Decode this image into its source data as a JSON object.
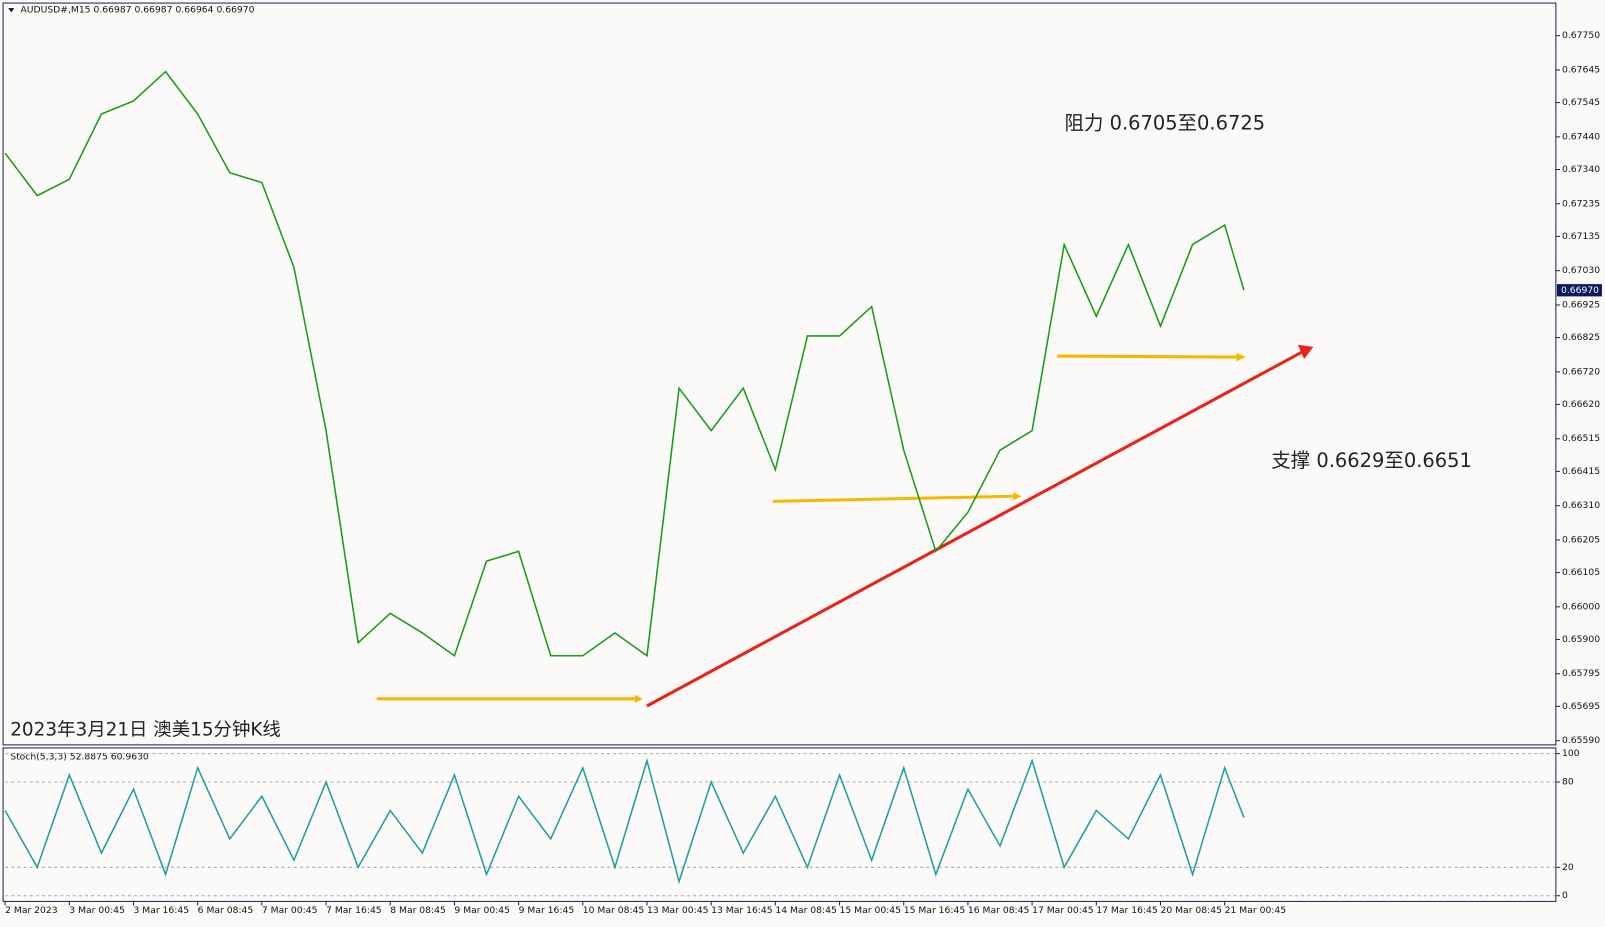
{
  "chart_data": [
    {
      "type": "line",
      "title": "AUDUSD#,M15  0.66987 0.66987 0.66964 0.66970",
      "annotations": [
        "阻力 0.6705至0.6725",
        "支撑 0.6629至0.6651",
        "2023年3月21日 澳美15分钟K线"
      ],
      "x": [
        0,
        0.5,
        1,
        1.5,
        2,
        2.5,
        3,
        3.5,
        4,
        4.5,
        5,
        5.5,
        6,
        6.5,
        7,
        7.5,
        8,
        8.5,
        9,
        9.5,
        10,
        10.5,
        11,
        11.5,
        12,
        12.5,
        13,
        13.5,
        14,
        14.5,
        15,
        15.5,
        16,
        16.5,
        17,
        17.5,
        18,
        18.5,
        19,
        19.3
      ],
      "values": [
        0.6739,
        0.6726,
        0.6731,
        0.6751,
        0.6755,
        0.6764,
        0.6751,
        0.6733,
        0.673,
        0.6704,
        0.6654,
        0.6589,
        0.6598,
        0.6592,
        0.6585,
        0.6614,
        0.6617,
        0.6585,
        0.6585,
        0.6592,
        0.6585,
        0.6667,
        0.6654,
        0.6667,
        0.6642,
        0.6683,
        0.6683,
        0.6692,
        0.6648,
        0.6617,
        0.6629,
        0.6648,
        0.6654,
        0.6711,
        0.6689,
        0.6711,
        0.6686,
        0.6711,
        0.6717,
        0.6697
      ],
      "color": "#169c16",
      "xlim": [
        0,
        24.16
      ],
      "ylim": [
        0.65577,
        0.6785
      ],
      "yticks": [
        {
          "value": 0.6775,
          "label": "0.67750"
        },
        {
          "value": 0.67645,
          "label": "0.67645"
        },
        {
          "value": 0.67545,
          "label": "0.67545"
        },
        {
          "value": 0.6744,
          "label": "0.67440"
        },
        {
          "value": 0.6734,
          "label": "0.67340"
        },
        {
          "value": 0.67235,
          "label": "0.67235"
        },
        {
          "value": 0.67135,
          "label": "0.67135"
        },
        {
          "value": 0.6703,
          "label": "0.67030"
        },
        {
          "value": 0.66925,
          "label": "0.66925"
        },
        {
          "value": 0.66825,
          "label": "0.66825"
        },
        {
          "value": 0.6672,
          "label": "0.66720"
        },
        {
          "value": 0.6662,
          "label": "0.66620"
        },
        {
          "value": 0.66515,
          "label": "0.66515"
        },
        {
          "value": 0.66415,
          "label": "0.66415"
        },
        {
          "value": 0.6631,
          "label": "0.66310"
        },
        {
          "value": 0.66205,
          "label": "0.66205"
        },
        {
          "value": 0.66105,
          "label": "0.66105"
        },
        {
          "value": 0.66,
          "label": "0.66000"
        },
        {
          "value": 0.659,
          "label": "0.65900"
        },
        {
          "value": 0.65795,
          "label": "0.65795"
        },
        {
          "value": 0.65695,
          "label": "0.65695"
        },
        {
          "value": 0.6559,
          "label": "0.65590"
        }
      ],
      "last_price": {
        "value": 0.6697,
        "label": "0.66970"
      }
    },
    {
      "type": "line",
      "title": "Stoch(5,3,3) 52.8875 60.9630",
      "x": [
        0,
        0.5,
        1,
        1.5,
        2,
        2.5,
        3,
        3.5,
        4,
        4.5,
        5,
        5.5,
        6,
        6.5,
        7,
        7.5,
        8,
        8.5,
        9,
        9.5,
        10,
        10.5,
        11,
        11.5,
        12,
        12.5,
        13,
        13.5,
        14,
        14.5,
        15,
        15.5,
        16,
        16.5,
        17,
        17.5,
        18,
        18.5,
        19,
        19.3
      ],
      "values": [
        60,
        20,
        85,
        30,
        75,
        15,
        90,
        40,
        70,
        25,
        80,
        20,
        60,
        30,
        85,
        15,
        70,
        40,
        90,
        20,
        95,
        10,
        80,
        30,
        70,
        20,
        85,
        25,
        90,
        15,
        75,
        35,
        95,
        20,
        60,
        40,
        85,
        15,
        90,
        55
      ],
      "color": "#1e9e9e",
      "xlim": [
        0,
        24.16
      ],
      "ylim": [
        -4,
        104
      ],
      "yticks": [
        0,
        20,
        80,
        100
      ],
      "xticks": [
        {
          "value": 0,
          "label": "2 Mar 2023"
        },
        {
          "value": 1,
          "label": "3 Mar 00:45"
        },
        {
          "value": 2,
          "label": "3 Mar 16:45"
        },
        {
          "value": 3,
          "label": "6 Mar 08:45"
        },
        {
          "value": 4,
          "label": "7 Mar 00:45"
        },
        {
          "value": 5,
          "label": "7 Mar 16:45"
        },
        {
          "value": 6,
          "label": "8 Mar 08:45"
        },
        {
          "value": 7,
          "label": "9 Mar 00:45"
        },
        {
          "value": 8,
          "label": "9 Mar 16:45"
        },
        {
          "value": 9,
          "label": "10 Mar 08:45"
        },
        {
          "value": 10,
          "label": "13 Mar 00:45"
        },
        {
          "value": 11,
          "label": "13 Mar 16:45"
        },
        {
          "value": 12,
          "label": "14 Mar 08:45"
        },
        {
          "value": 13,
          "label": "15 Mar 00:45"
        },
        {
          "value": 14,
          "label": "15 Mar 16:45"
        },
        {
          "value": 15,
          "label": "16 Mar 08:45"
        },
        {
          "value": 16,
          "label": "17 Mar 00:45"
        },
        {
          "value": 17,
          "label": "17 Mar 16:45"
        },
        {
          "value": 18,
          "label": "20 Mar 08:45"
        },
        {
          "value": 19,
          "label": "21 Mar 00:45"
        }
      ]
    }
  ]
}
